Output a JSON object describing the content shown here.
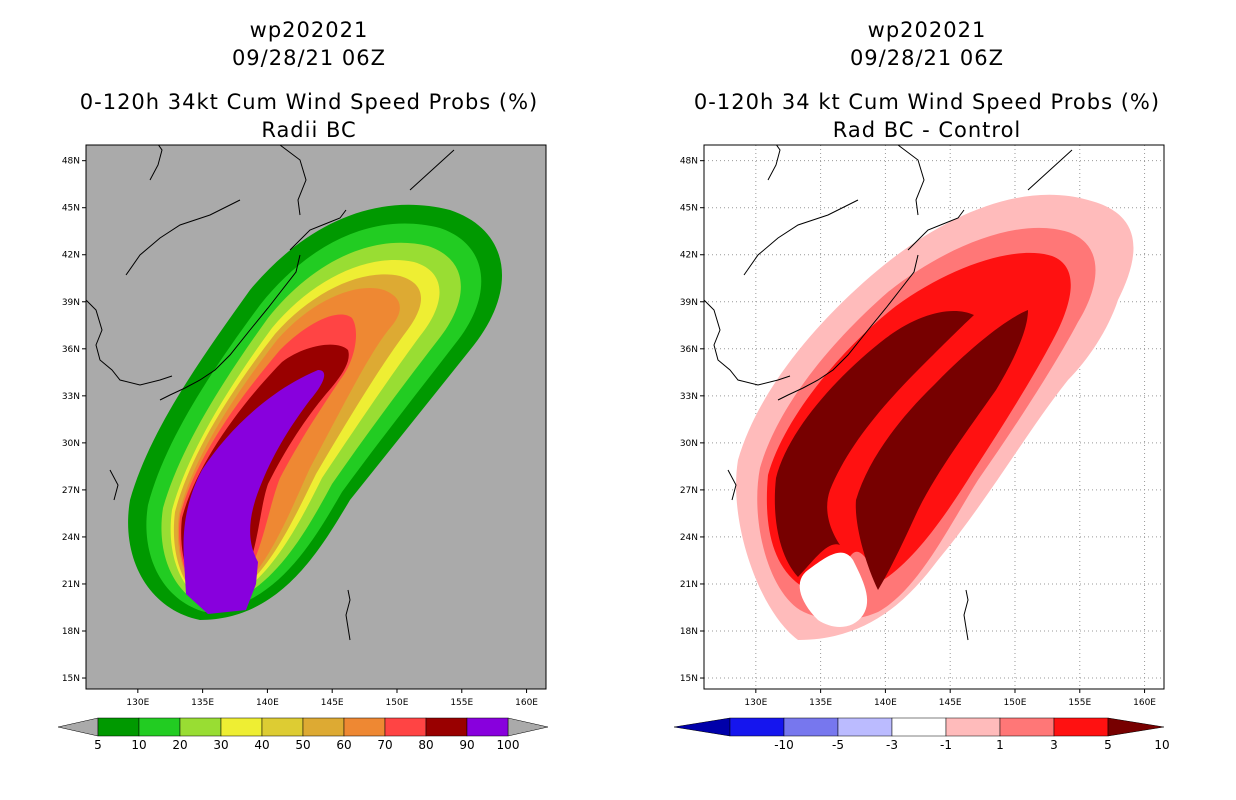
{
  "chart_data": [
    {
      "type": "heatmap",
      "storm_id": "wp202021",
      "datetime": "09/28/21 06Z",
      "title": "0-120h 34kt Cum Wind Speed Probs (%)",
      "subtitle": "Radii BC",
      "x_ticks": [
        "130E",
        "135E",
        "140E",
        "145E",
        "150E",
        "155E",
        "160E"
      ],
      "x_tick_values": [
        130,
        135,
        140,
        145,
        150,
        155,
        160
      ],
      "y_ticks": [
        "15N",
        "18N",
        "21N",
        "24N",
        "27N",
        "30N",
        "33N",
        "36N",
        "39N",
        "42N",
        "45N",
        "48N"
      ],
      "y_tick_values": [
        15,
        18,
        21,
        24,
        27,
        30,
        33,
        36,
        39,
        42,
        45,
        48
      ],
      "lon_range": [
        126,
        161.5
      ],
      "lat_range": [
        14.3,
        49
      ],
      "colorbar": {
        "labels": [
          "5",
          "10",
          "20",
          "30",
          "40",
          "50",
          "60",
          "70",
          "80",
          "90",
          "100"
        ],
        "colors": [
          "#009900",
          "#22cc22",
          "#99dd33",
          "#eeee33",
          "#ddcc33",
          "#ddaa33",
          "#ee8833",
          "#ff4444",
          "#990000",
          "#8800dd"
        ],
        "end_color": "#aaaaaa"
      },
      "background": "#aaaaaa"
    },
    {
      "type": "heatmap",
      "storm_id": "wp202021",
      "datetime": "09/28/21 06Z",
      "title": "0-120h 34 kt Cum Wind Speed Probs (%)",
      "subtitle": "Rad BC - Control",
      "x_ticks": [
        "130E",
        "135E",
        "140E",
        "145E",
        "150E",
        "155E",
        "160E"
      ],
      "x_tick_values": [
        130,
        135,
        140,
        145,
        150,
        155,
        160
      ],
      "y_ticks": [
        "15N",
        "18N",
        "21N",
        "24N",
        "27N",
        "30N",
        "33N",
        "36N",
        "39N",
        "42N",
        "45N",
        "48N"
      ],
      "y_tick_values": [
        15,
        18,
        21,
        24,
        27,
        30,
        33,
        36,
        39,
        42,
        45,
        48
      ],
      "lon_range": [
        126,
        161.5
      ],
      "lat_range": [
        14.3,
        49
      ],
      "colorbar": {
        "labels": [
          "-10",
          "-5",
          "-3",
          "-1",
          "1",
          "3",
          "5",
          "10"
        ],
        "colors": [
          "#0000aa",
          "#1515ee",
          "#7777ee",
          "#bbbbff",
          "#ffffff",
          "#ffbbbb",
          "#ff7777",
          "#ff1111",
          "#770000"
        ]
      },
      "background": "#ffffff"
    }
  ]
}
